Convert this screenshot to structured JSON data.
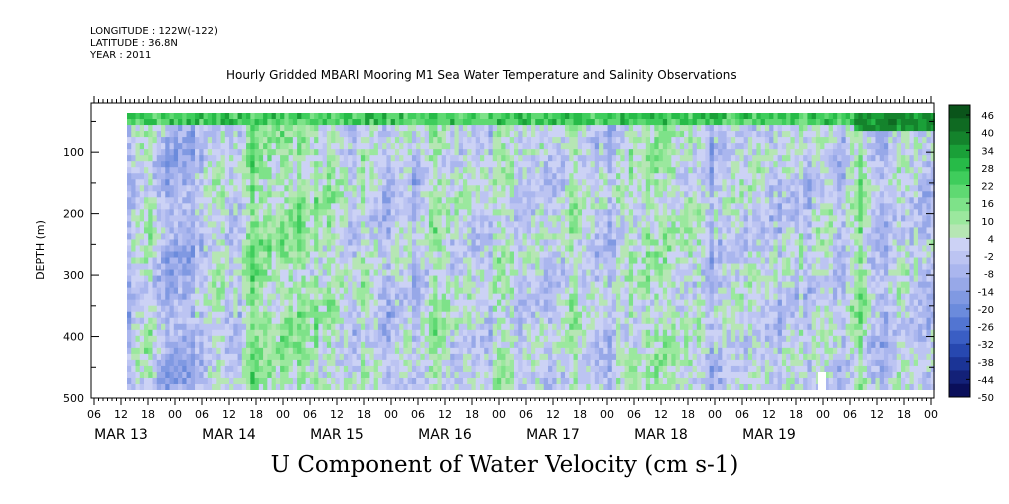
{
  "header": {
    "longitude": "LONGITUDE : 122W(-122)",
    "latitude": "LATITUDE : 36.8N",
    "year": "YEAR : 2011"
  },
  "chart_data": {
    "type": "heatmap",
    "title": "Hourly Gridded MBARI Mooring M1 Sea Water Temperature and Salinity Observations",
    "xlabel": "U Component of Water Velocity (cm s-1)",
    "ylabel": "DEPTH (m)",
    "y_axis": {
      "range": [
        500,
        20
      ],
      "inverted": true,
      "ticks": [
        100,
        200,
        300,
        400,
        500
      ]
    },
    "x_axis": {
      "range_hours": [
        "2011-03-12 06:00",
        "2011-03-20 00:00"
      ],
      "hour_ticks": [
        "06",
        "12",
        "18",
        "00",
        "06",
        "12",
        "18",
        "00",
        "06",
        "12",
        "18",
        "00",
        "06",
        "12",
        "18",
        "00",
        "06",
        "12",
        "18",
        "00",
        "06",
        "12",
        "18",
        "00",
        "06",
        "12",
        "18",
        "00",
        "06",
        "12",
        "18",
        "00"
      ],
      "day_labels": [
        "MAR 13",
        "MAR 14",
        "MAR 15",
        "MAR 16",
        "MAR 17",
        "MAR 18",
        "MAR 19"
      ]
    },
    "data_extent": {
      "time_start": "2011-03-12 12:00",
      "time_end": "2011-03-20 00:00",
      "depth_top": 20,
      "depth_bottom": 485
    },
    "colorbar": {
      "labels": [
        "46",
        "40",
        "34",
        "28",
        "22",
        "16",
        "10",
        "4",
        "-2",
        "-8",
        "-14",
        "-20",
        "-26",
        "-32",
        "-38",
        "-44",
        "-50"
      ],
      "levels_min": -50,
      "levels_max": 46,
      "colors": [
        "#0a0f5a",
        "#132178",
        "#1b3496",
        "#2748b0",
        "#3a5ec4",
        "#5275d2",
        "#6b8bdc",
        "#8099e2",
        "#97a8e8",
        "#aab6ee",
        "#bcc4f2",
        "#ccd2f5",
        "#b6e6b4",
        "#9be89e",
        "#7ee289",
        "#5fd972",
        "#3fcd5c",
        "#27bb48",
        "#1aa038",
        "#14832c",
        "#0f6a22",
        "#0a541a"
      ]
    },
    "summary": "U velocity component ranges roughly -30 to +30 cm/s; alternating vertical bands of positive (green) and negative (blue) flow over depth 20-485 m"
  }
}
